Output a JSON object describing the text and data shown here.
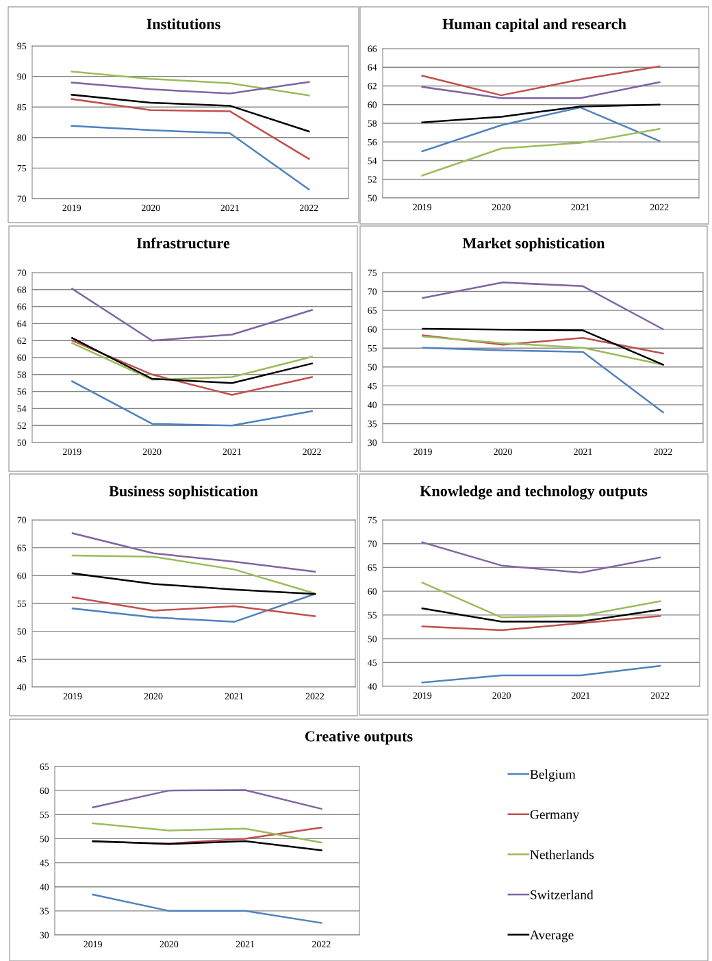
{
  "chart_data": [
    {
      "type": "line",
      "title": "Institutions",
      "categories": [
        "2019",
        "2020",
        "2021",
        "2022"
      ],
      "ylim": [
        70,
        95
      ],
      "yticks": [
        70,
        75,
        80,
        85,
        90,
        95
      ],
      "grid": "y",
      "marker": "none",
      "series": [
        {
          "color": "#4f81bd",
          "values": [
            81.9,
            81.2,
            80.7,
            71.5
          ]
        },
        {
          "color": "#c0504d",
          "values": [
            86.3,
            84.5,
            84.3,
            76.5
          ]
        },
        {
          "color": "#9bbb59",
          "values": [
            90.8,
            89.6,
            88.9,
            86.9
          ]
        },
        {
          "color": "#8064a2",
          "values": [
            89.0,
            87.9,
            87.2,
            89.1
          ]
        },
        {
          "color": "#000000",
          "values": [
            87.0,
            85.7,
            85.2,
            81.0
          ]
        }
      ]
    },
    {
      "type": "line",
      "title": "Human capital and research",
      "categories": [
        "2019",
        "2020",
        "2021",
        "2022"
      ],
      "ylim": [
        50,
        66
      ],
      "yticks": [
        50,
        52,
        54,
        56,
        58,
        60,
        62,
        64,
        66
      ],
      "grid": "y",
      "marker": "none",
      "series": [
        {
          "color": "#4f81bd",
          "values": [
            55.0,
            57.8,
            59.7,
            56.1
          ]
        },
        {
          "color": "#c0504d",
          "values": [
            63.1,
            61.0,
            62.7,
            64.1
          ]
        },
        {
          "color": "#9bbb59",
          "values": [
            52.4,
            55.3,
            55.9,
            57.4
          ]
        },
        {
          "color": "#8064a2",
          "values": [
            61.9,
            60.7,
            60.7,
            62.4
          ]
        },
        {
          "color": "#000000",
          "values": [
            58.1,
            58.7,
            59.8,
            60.0
          ]
        }
      ]
    },
    {
      "type": "line",
      "title": "Infrastructure",
      "categories": [
        "2019",
        "2020",
        "2021",
        "2022"
      ],
      "ylim": [
        50,
        70
      ],
      "yticks": [
        50,
        52,
        54,
        56,
        58,
        60,
        62,
        64,
        66,
        68,
        70
      ],
      "grid": "y",
      "marker": "none",
      "series": [
        {
          "color": "#4f81bd",
          "values": [
            57.2,
            52.2,
            52.0,
            53.7
          ]
        },
        {
          "color": "#c0504d",
          "values": [
            62.0,
            58.0,
            55.6,
            57.7
          ]
        },
        {
          "color": "#9bbb59",
          "values": [
            61.7,
            57.4,
            57.7,
            60.1
          ]
        },
        {
          "color": "#8064a2",
          "values": [
            68.1,
            62.0,
            62.7,
            65.6
          ]
        },
        {
          "color": "#000000",
          "values": [
            62.3,
            57.5,
            57.0,
            59.3
          ]
        }
      ]
    },
    {
      "type": "line",
      "title": "Market sophistication",
      "categories": [
        "2019",
        "2020",
        "2021",
        "2022"
      ],
      "ylim": [
        30,
        75
      ],
      "yticks": [
        30,
        35,
        40,
        45,
        50,
        55,
        60,
        65,
        70,
        75
      ],
      "grid": "y",
      "marker": "none",
      "series": [
        {
          "color": "#4f81bd",
          "values": [
            55.1,
            54.4,
            54.0,
            38.0
          ]
        },
        {
          "color": "#c0504d",
          "values": [
            58.4,
            55.9,
            57.7,
            53.6
          ]
        },
        {
          "color": "#9bbb59",
          "values": [
            58.1,
            56.3,
            55.1,
            50.6
          ]
        },
        {
          "color": "#8064a2",
          "values": [
            68.3,
            72.4,
            71.4,
            60.0
          ]
        },
        {
          "color": "#000000",
          "values": [
            60.1,
            59.9,
            59.7,
            50.6
          ]
        }
      ]
    },
    {
      "type": "line",
      "title": "Business sophistication",
      "categories": [
        "2019",
        "2020",
        "2021",
        "2022"
      ],
      "ylim": [
        40,
        70
      ],
      "yticks": [
        40,
        45,
        50,
        55,
        60,
        65,
        70
      ],
      "grid": "y",
      "marker": "none",
      "series": [
        {
          "color": "#4f81bd",
          "values": [
            54.1,
            52.5,
            51.7,
            56.7
          ]
        },
        {
          "color": "#c0504d",
          "values": [
            56.1,
            53.7,
            54.5,
            52.7
          ]
        },
        {
          "color": "#9bbb59",
          "values": [
            63.6,
            63.4,
            61.1,
            56.8
          ]
        },
        {
          "color": "#8064a2",
          "values": [
            67.6,
            64.0,
            62.5,
            60.7
          ]
        },
        {
          "color": "#000000",
          "values": [
            60.4,
            58.5,
            57.5,
            56.7
          ]
        }
      ]
    },
    {
      "type": "line",
      "title": "Knowledge and technology outputs",
      "categories": [
        "2019",
        "2020",
        "2021",
        "2022"
      ],
      "ylim": [
        40,
        75
      ],
      "yticks": [
        40,
        45,
        50,
        55,
        60,
        65,
        70,
        75
      ],
      "grid": "y",
      "marker": "none",
      "series": [
        {
          "color": "#4f81bd",
          "values": [
            40.8,
            42.3,
            42.3,
            44.3
          ]
        },
        {
          "color": "#c0504d",
          "values": [
            52.6,
            51.8,
            53.3,
            54.8
          ]
        },
        {
          "color": "#9bbb59",
          "values": [
            61.8,
            54.5,
            54.8,
            57.9
          ]
        },
        {
          "color": "#8064a2",
          "values": [
            70.3,
            65.4,
            63.9,
            67.1
          ]
        },
        {
          "color": "#000000",
          "values": [
            56.4,
            53.6,
            53.6,
            56.1
          ]
        }
      ]
    },
    {
      "type": "line",
      "title": "Creative outputs",
      "categories": [
        "2019",
        "2020",
        "2021",
        "2022"
      ],
      "ylim": [
        30,
        65
      ],
      "yticks": [
        30,
        35,
        40,
        45,
        50,
        55,
        60,
        65
      ],
      "grid": "y",
      "marker": "none",
      "legend": "right",
      "series": [
        {
          "name": "Belgium",
          "color": "#4f81bd",
          "values": [
            38.4,
            35.0,
            35.0,
            32.5
          ]
        },
        {
          "name": "Germany",
          "color": "#c0504d",
          "values": [
            49.4,
            49.0,
            50.0,
            52.3
          ]
        },
        {
          "name": "Netherlands",
          "color": "#9bbb59",
          "values": [
            53.2,
            51.7,
            52.1,
            49.2
          ]
        },
        {
          "name": "Switzerland",
          "color": "#8064a2",
          "values": [
            56.5,
            60.0,
            60.1,
            56.2
          ]
        },
        {
          "name": "Average",
          "color": "#000000",
          "values": [
            49.5,
            48.9,
            49.5,
            47.6
          ]
        }
      ]
    }
  ]
}
